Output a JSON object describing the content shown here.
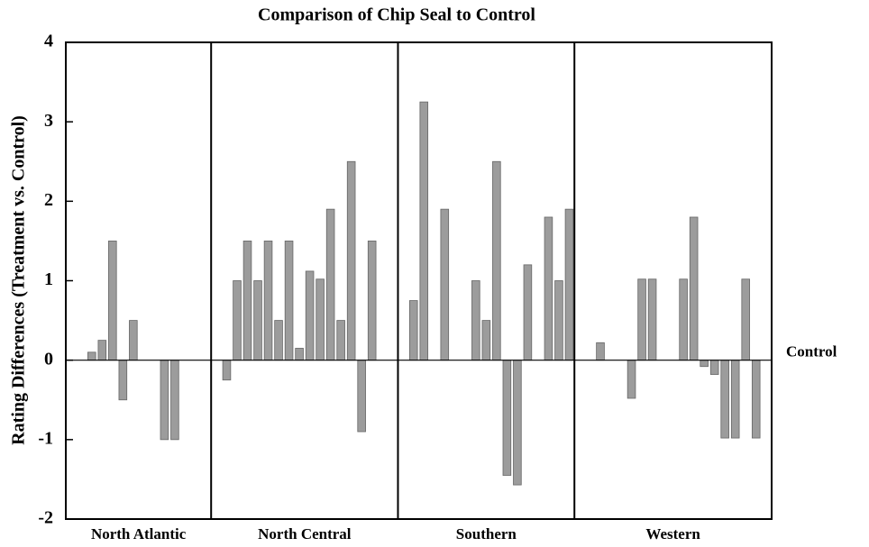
{
  "chart_data": {
    "type": "bar",
    "title": "Comparison of Chip Seal to Control",
    "y_label": "Rating Differences (Treatment vs. Control)",
    "color": "#9c9c9c",
    "ylim": [
      -2,
      4
    ],
    "yticks": [
      -2,
      -1,
      0,
      1,
      2,
      3,
      4
    ],
    "annotations": [
      {
        "text": "Control",
        "y": 0
      }
    ],
    "groups": [
      {
        "name": "North Atlantic",
        "values": [
          null,
          null,
          0.1,
          0.25,
          1.5,
          -0.5,
          0.5,
          null,
          null,
          -1,
          -1,
          null,
          null,
          null
        ]
      },
      {
        "name": "North Central",
        "values": [
          null,
          -0.25,
          1,
          1.5,
          1,
          1.5,
          0.5,
          1.5,
          0.15,
          1.12,
          1.02,
          1.9,
          0.5,
          2.5,
          -0.9,
          1.5,
          null,
          null
        ]
      },
      {
        "name": "Southern",
        "values": [
          null,
          0.75,
          3.25,
          null,
          1.9,
          null,
          null,
          1,
          0.5,
          2.5,
          -1.45,
          -1.57,
          1.2,
          null,
          1.8,
          1,
          1.9
        ]
      },
      {
        "name": "Western",
        "values": [
          null,
          null,
          0.22,
          null,
          null,
          -0.48,
          1.02,
          1.02,
          null,
          null,
          1.02,
          1.8,
          -0.08,
          -0.18,
          -0.98,
          -0.98,
          1.02,
          -0.98,
          null
        ]
      }
    ]
  }
}
